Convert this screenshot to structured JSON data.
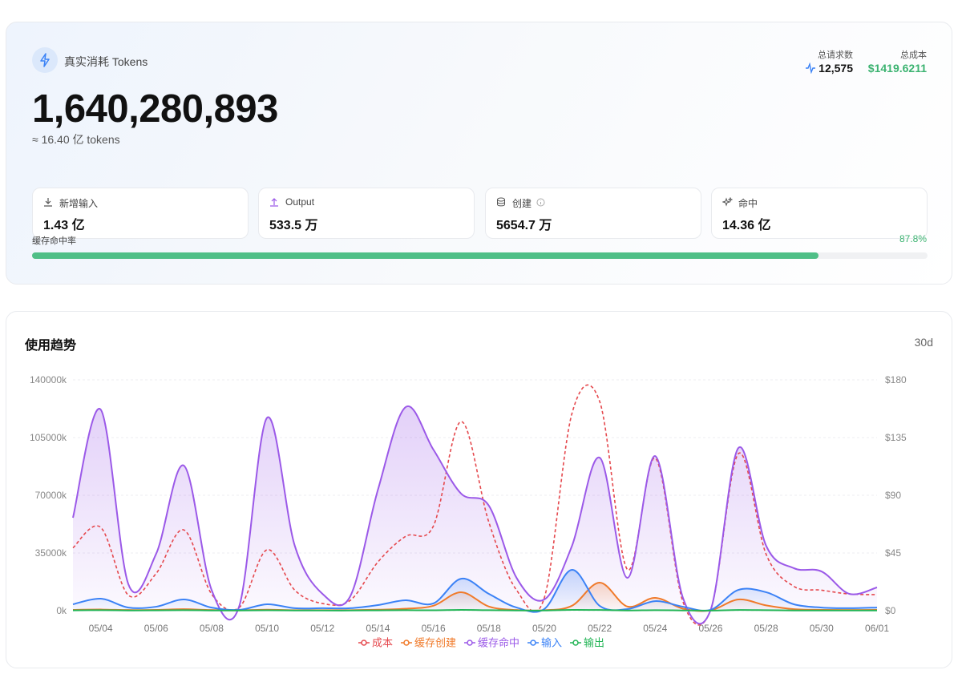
{
  "header": {
    "title": "真实消耗 Tokens",
    "total": "1,640,280,893",
    "approx": "≈ 16.40 亿 tokens",
    "stats": [
      {
        "label": "总请求数",
        "value": "12,575"
      },
      {
        "label": "总成本",
        "value": "$1419.6211"
      }
    ]
  },
  "cards": [
    {
      "label": "新增输入",
      "value": "1.43 亿"
    },
    {
      "label": "Output",
      "value": "533.5 万"
    },
    {
      "label": "创建",
      "value": "5654.7 万"
    },
    {
      "label": "命中",
      "value": "14.36 亿"
    }
  ],
  "hit_rate": {
    "label": "缓存命中率",
    "value": 87.8,
    "value_label": "87.8%"
  },
  "trend": {
    "title": "使用趋势",
    "range": "30d"
  },
  "chart_data": {
    "type": "line",
    "categories": [
      null,
      "05/04",
      null,
      "05/06",
      null,
      "05/08",
      null,
      "05/10",
      null,
      "05/12",
      null,
      "05/14",
      null,
      "05/16",
      null,
      "05/18",
      null,
      "05/20",
      null,
      "05/22",
      null,
      "05/24",
      null,
      "05/26",
      null,
      "05/28",
      null,
      "05/30",
      null,
      "06/01"
    ],
    "ylim": [
      0,
      140000
    ],
    "yticks": [
      {
        "value": 0,
        "label": "0k"
      },
      {
        "value": 35000,
        "label": "35000k"
      },
      {
        "value": 70000,
        "label": "70000k"
      },
      {
        "value": 105000,
        "label": "105000k"
      },
      {
        "value": 140000,
        "label": "140000k"
      }
    ],
    "y2lim": [
      0,
      180
    ],
    "y2ticks": [
      {
        "value": 0,
        "label": "$0"
      },
      {
        "value": 45,
        "label": "$45"
      },
      {
        "value": 90,
        "label": "$90"
      },
      {
        "value": 135,
        "label": "$135"
      },
      {
        "value": 180,
        "label": "$180"
      }
    ],
    "grid": true,
    "series": [
      {
        "name": "成本",
        "color": "#e5484d",
        "axis": "y2",
        "dashed": true,
        "values": [
          49,
          65,
          12,
          29,
          63,
          13,
          2.5,
          47.5,
          16,
          5.6,
          8,
          38,
          58,
          66,
          147.5,
          69,
          16,
          10,
          154,
          163,
          32,
          119,
          7,
          0.6,
          122.5,
          44,
          19,
          16,
          13,
          12.5
        ]
      },
      {
        "name": "缓存创建",
        "color": "#f07a2a",
        "area": true,
        "values": [
          500,
          700,
          400,
          500,
          900,
          400,
          200,
          600,
          300,
          300,
          300,
          600,
          1200,
          3000,
          11200,
          2500,
          400,
          300,
          3000,
          17000,
          2500,
          7800,
          1200,
          200,
          6800,
          3200,
          900,
          500,
          400,
          500
        ]
      },
      {
        "name": "缓存命中",
        "color": "#9b59e8",
        "area": true,
        "values": [
          56400,
          122000,
          16000,
          34500,
          88000,
          12600,
          2900,
          117000,
          39400,
          10200,
          8700,
          73400,
          123500,
          97700,
          71000,
          63700,
          19900,
          6800,
          39400,
          92800,
          19900,
          93800,
          7800,
          500,
          98700,
          39400,
          25800,
          23800,
          10200,
          14100
        ]
      },
      {
        "name": "输入",
        "color": "#3b82f6",
        "area": true,
        "values": [
          3900,
          7300,
          1900,
          2400,
          6800,
          1900,
          500,
          3900,
          1500,
          1500,
          1500,
          3400,
          6300,
          4400,
          19400,
          10200,
          1900,
          1000,
          24800,
          2900,
          1000,
          5800,
          2400,
          500,
          12600,
          11200,
          3900,
          1900,
          1500,
          1900
        ]
      },
      {
        "name": "输出",
        "color": "#22b455",
        "values": [
          200,
          300,
          150,
          200,
          300,
          150,
          100,
          250,
          150,
          100,
          100,
          200,
          300,
          250,
          500,
          300,
          150,
          100,
          500,
          400,
          150,
          300,
          150,
          50,
          400,
          300,
          150,
          150,
          100,
          150
        ]
      }
    ]
  }
}
